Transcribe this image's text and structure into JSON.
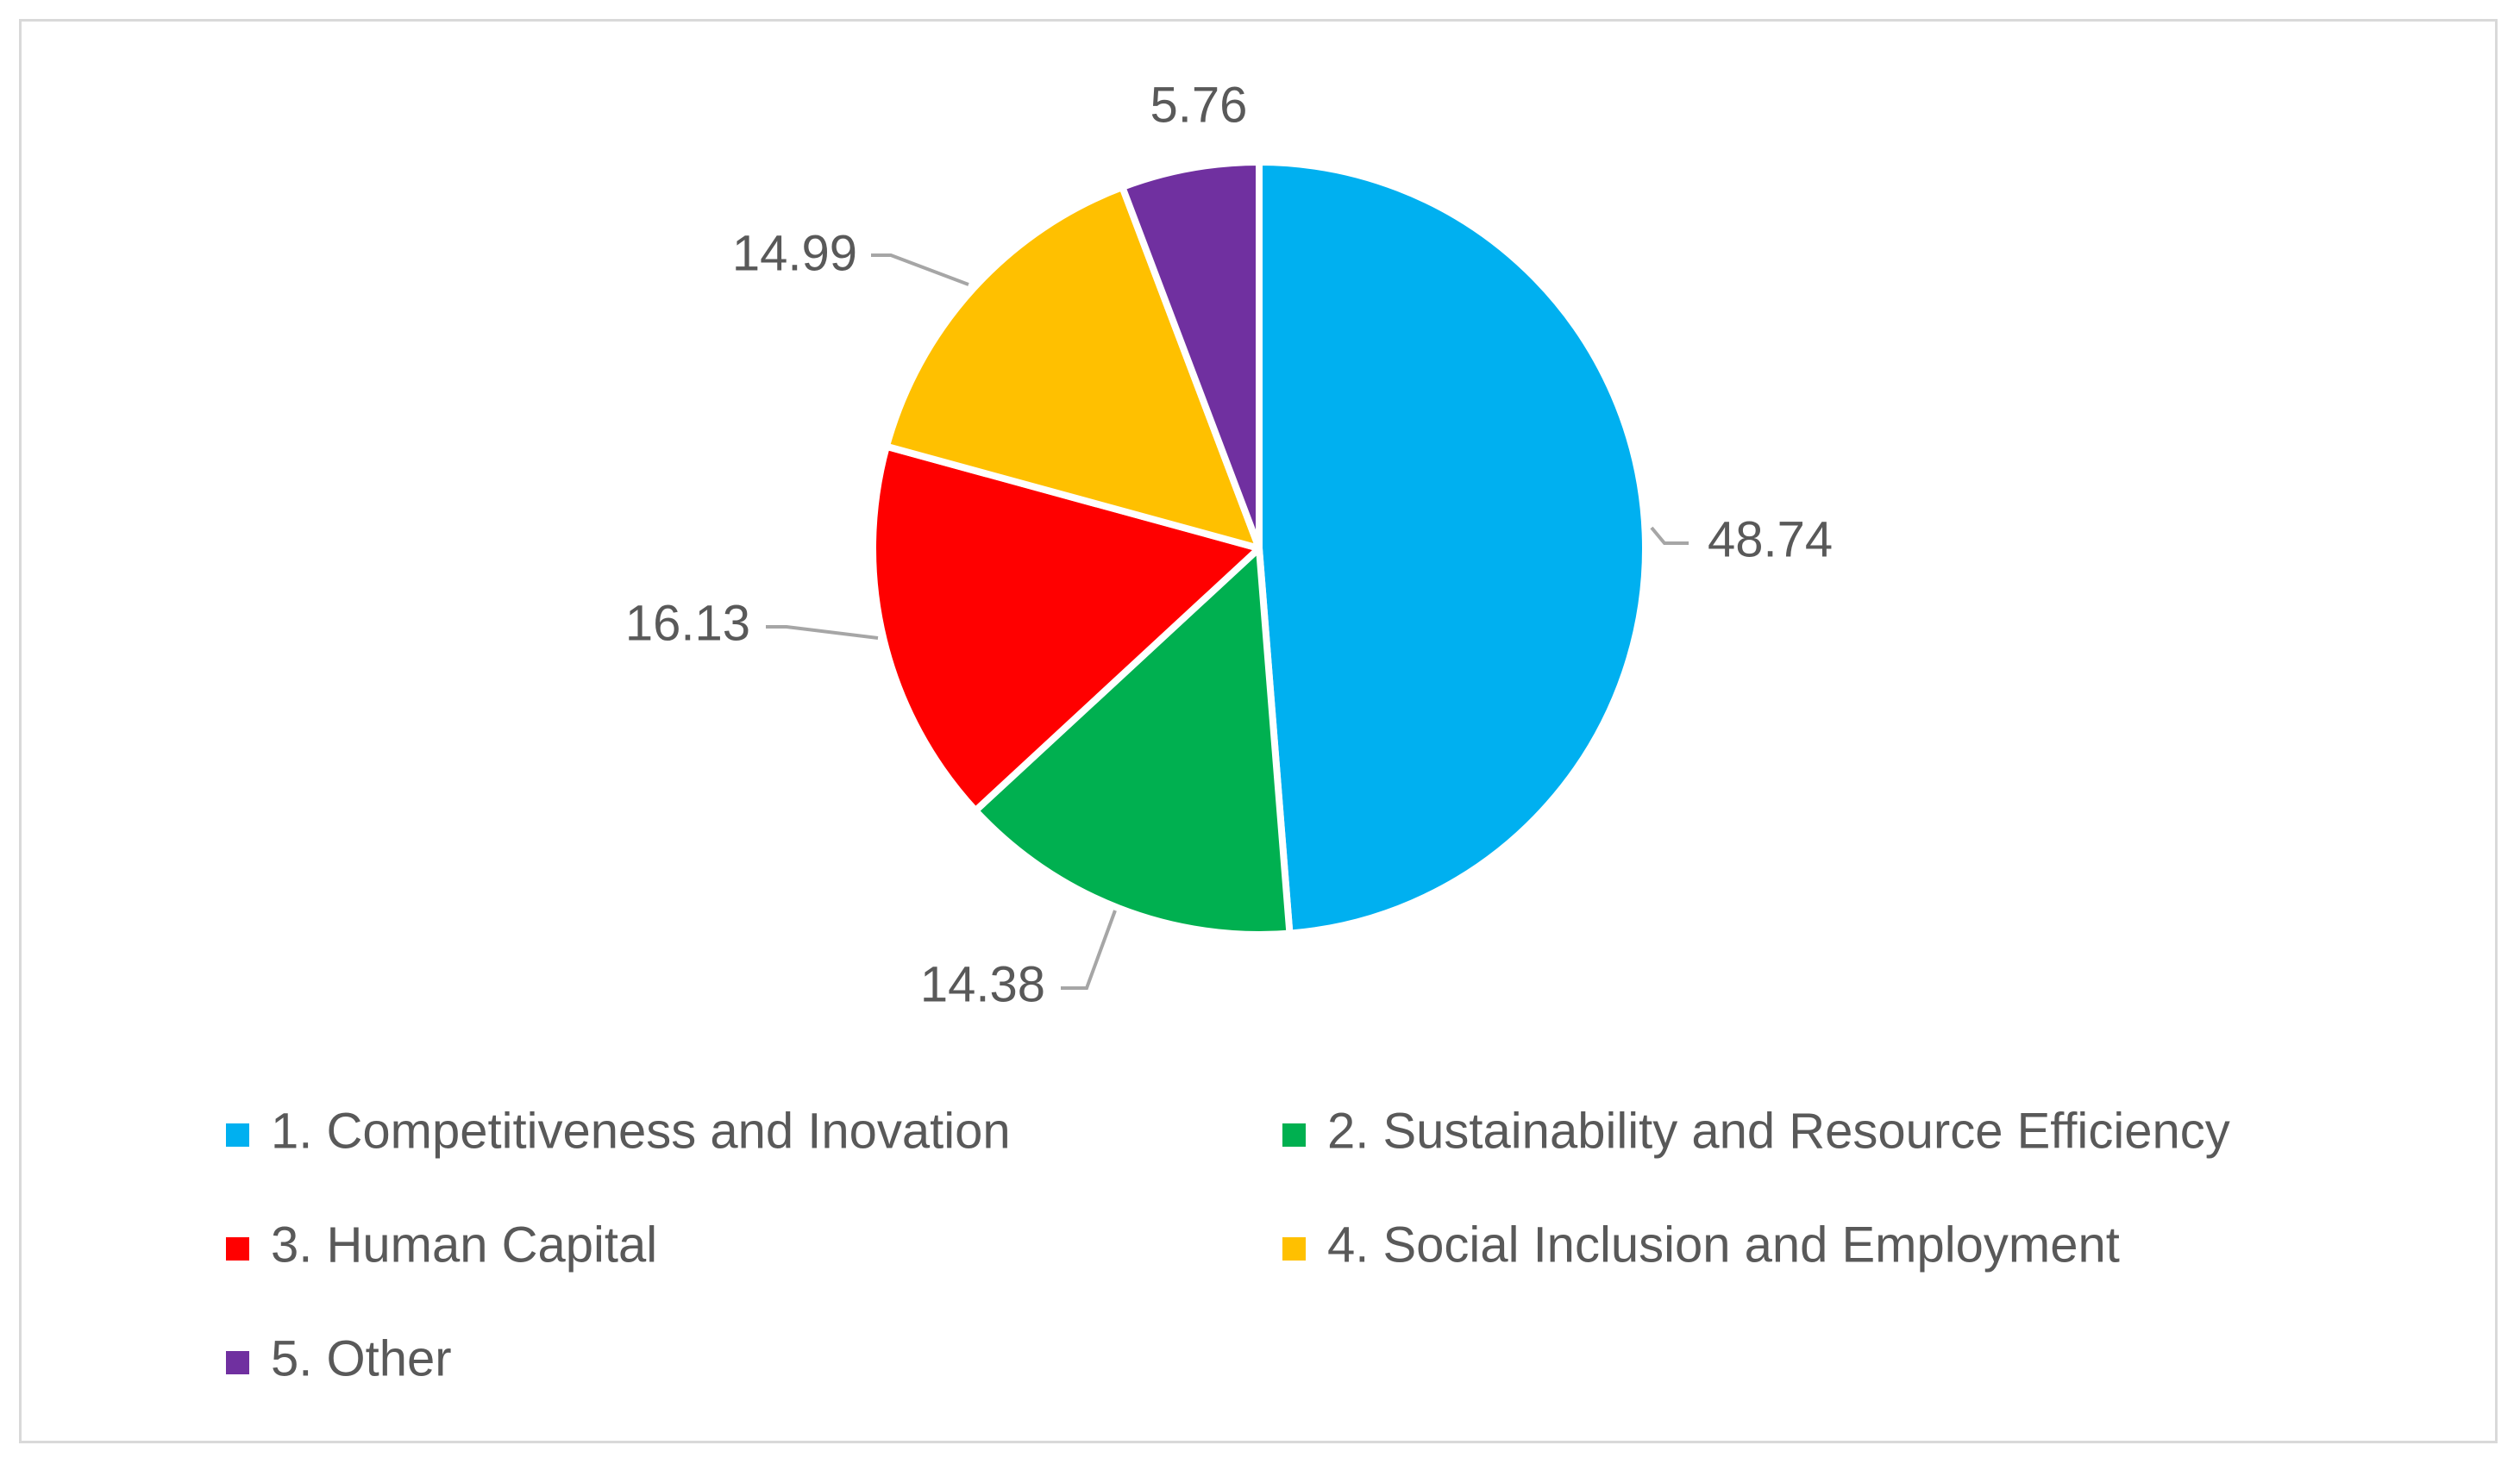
{
  "chart_data": {
    "type": "pie",
    "title": "",
    "categories": [
      "1. Competitiveness and Inovation",
      "2. Sustainability and Resource Efficiency",
      "3. Human Capital",
      "4. Social Inclusion and Employment",
      "5. Other"
    ],
    "values": [
      48.74,
      14.38,
      16.13,
      14.99,
      5.76
    ],
    "labels": [
      "48.74",
      "14.38",
      "16.13",
      "14.99",
      "5.76"
    ],
    "colors": [
      "#00B0F0",
      "#00B050",
      "#FF0000",
      "#FFC000",
      "#7030A0"
    ],
    "legend_position": "bottom"
  }
}
